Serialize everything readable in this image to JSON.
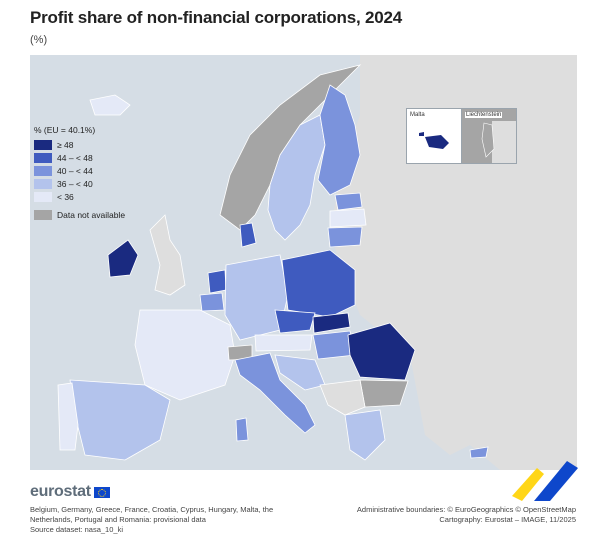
{
  "title": "Profit share of non-financial corporations, 2024",
  "subtitle": "(%)",
  "legend": {
    "title": "% (EU = 40.1%)",
    "classes": [
      {
        "label": "≥ 48",
        "color": "#1a2a80"
      },
      {
        "label": "44 – < 48",
        "color": "#3f5bbf"
      },
      {
        "label": "40 – < 44",
        "color": "#7b93dc"
      },
      {
        "label": "36 – < 40",
        "color": "#b3c3ec"
      },
      {
        "label": "< 36",
        "color": "#e4e9f7"
      }
    ],
    "not_available": {
      "label": "Data not available",
      "color": "#a5a5a5"
    }
  },
  "insets": {
    "malta": "Malta",
    "liechtenstein": "Liechtenstein"
  },
  "colors": {
    "sea": "#d5dde5",
    "non_eu_land": "#dedede",
    "border": "#ffffff",
    "brand": "#5f6d7a"
  },
  "brand": "eurostat",
  "notes": {
    "line1": "Belgium, Germany, Greece, France, Croatia, Cyprus, Hungary, Malta, the",
    "line2": "Netherlands, Portugal and Romania: provisional data",
    "line3": "Source dataset: nasa_10_ki"
  },
  "credits": {
    "line1": "Administrative boundaries: © EuroGeographics © OpenStreetMap",
    "line2": "Cartography: Eurostat – IMAGE, 11/2025"
  }
}
